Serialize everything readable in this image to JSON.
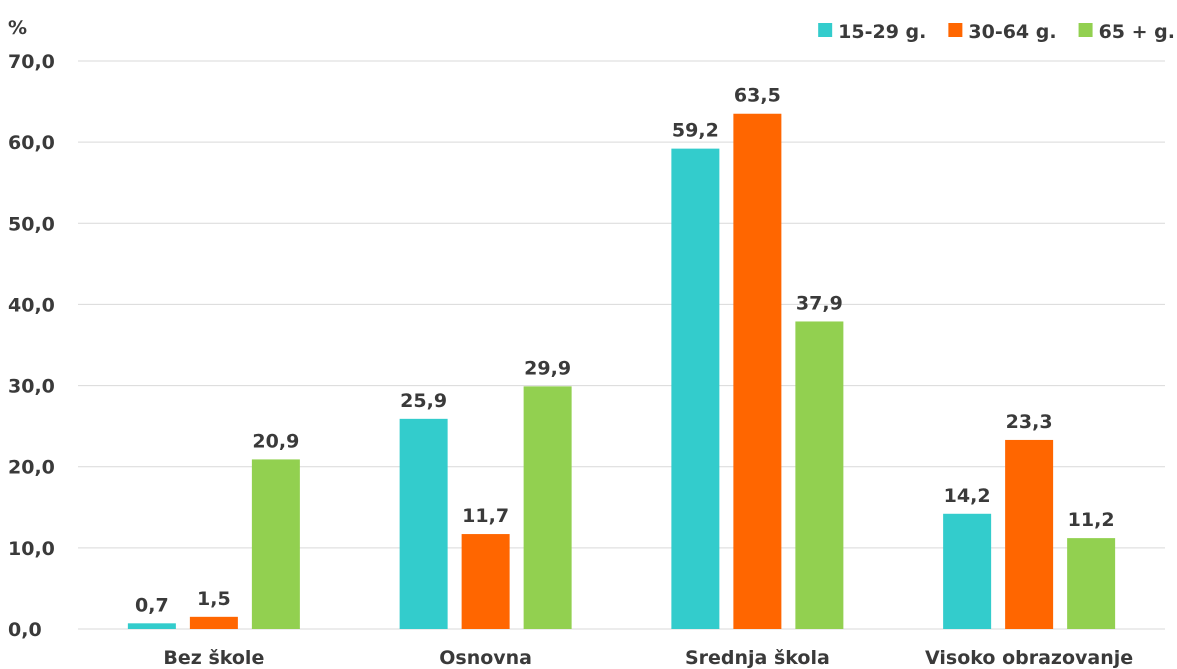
{
  "chart_data": {
    "type": "bar",
    "unit_label": "%",
    "categories": [
      "Bez škole",
      "Osnovna",
      "Srednja škola",
      "Visoko obrazovanje"
    ],
    "series": [
      {
        "name": "15-29 g.",
        "color": "#33cccc",
        "values": [
          0.7,
          25.9,
          59.2,
          14.2
        ],
        "labels": [
          "0,7",
          "25,9",
          "59,2",
          "14,2"
        ]
      },
      {
        "name": "30-64 g.",
        "color": "#ff6600",
        "values": [
          1.5,
          11.7,
          63.5,
          23.3
        ],
        "labels": [
          "1,5",
          "11,7",
          "63,5",
          "23,3"
        ]
      },
      {
        "name": "65 + g.",
        "color": "#92d050",
        "values": [
          20.9,
          29.9,
          37.9,
          11.2
        ],
        "labels": [
          "20,9",
          "29,9",
          "37,9",
          "11,2"
        ]
      }
    ],
    "ylim": [
      0,
      70
    ],
    "yticks": [
      0,
      10,
      20,
      30,
      40,
      50,
      60,
      70
    ],
    "ytick_labels": [
      "0,0",
      "10,0",
      "20,0",
      "30,0",
      "40,0",
      "50,0",
      "60,0",
      "70,0"
    ],
    "grid": true,
    "legend_position": "top-right"
  }
}
